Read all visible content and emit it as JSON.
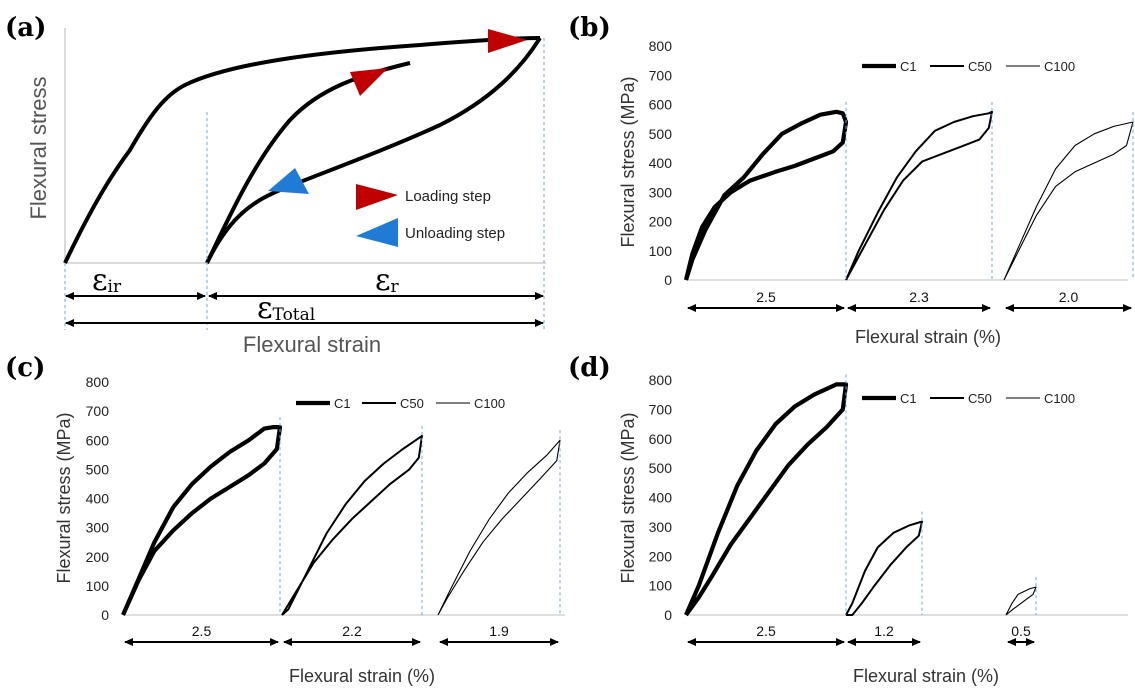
{
  "chart_data": [
    {
      "panel": "(a)",
      "type": "line",
      "xlabel": "Flexural strain",
      "ylabel": "Flexural stress",
      "annotations": {
        "eps_ir": "ε",
        "eps_ir_sub": "ir",
        "eps_r": "ε",
        "eps_r_sub": "r",
        "eps_total": "ε",
        "eps_total_sub": "Total"
      },
      "legend": {
        "loading": "Loading step",
        "unloading": "Unloading step"
      },
      "colors": {
        "loading": "#c00000",
        "unloading": "#1f7bd6"
      }
    },
    {
      "panel": "(b)",
      "type": "line",
      "xlabel": "Flexural strain (%)",
      "ylabel": "Flexural stress (MPa)",
      "ylim": [
        0,
        800
      ],
      "yticks": [
        "0",
        "100",
        "200",
        "300",
        "400",
        "500",
        "600",
        "700",
        "800"
      ],
      "legend": [
        "C1",
        "C50",
        "C100"
      ],
      "spans": [
        "2.5",
        "2.3",
        "2.0"
      ],
      "series": [
        {
          "name": "C1",
          "strain_range": 2.5,
          "loading": [
            [
              0,
              0
            ],
            [
              0.1,
              70
            ],
            [
              0.3,
              170
            ],
            [
              0.6,
              290
            ],
            [
              0.9,
              350
            ],
            [
              1.2,
              430
            ],
            [
              1.5,
              500
            ],
            [
              1.8,
              535
            ],
            [
              2.1,
              565
            ],
            [
              2.35,
              575
            ],
            [
              2.45,
              570
            ]
          ],
          "unloading": [
            [
              2.45,
              570
            ],
            [
              2.5,
              540
            ],
            [
              2.45,
              470
            ],
            [
              2.3,
              440
            ],
            [
              2.0,
              415
            ],
            [
              1.7,
              390
            ],
            [
              1.4,
              370
            ],
            [
              1.0,
              340
            ],
            [
              0.7,
              300
            ],
            [
              0.45,
              250
            ],
            [
              0.25,
              180
            ],
            [
              0.1,
              90
            ],
            [
              0,
              0
            ]
          ]
        },
        {
          "name": "C50",
          "strain_range": 2.3,
          "loading": [
            [
              0,
              0
            ],
            [
              0.2,
              100
            ],
            [
              0.5,
              230
            ],
            [
              0.8,
              350
            ],
            [
              1.1,
              440
            ],
            [
              1.4,
              510
            ],
            [
              1.7,
              540
            ],
            [
              2.0,
              560
            ],
            [
              2.25,
              570
            ],
            [
              2.3,
              575
            ]
          ],
          "unloading": [
            [
              2.3,
              575
            ],
            [
              2.25,
              520
            ],
            [
              2.1,
              480
            ],
            [
              1.8,
              455
            ],
            [
              1.5,
              430
            ],
            [
              1.2,
              405
            ],
            [
              0.9,
              340
            ],
            [
              0.6,
              240
            ],
            [
              0.3,
              120
            ],
            [
              0,
              0
            ]
          ]
        },
        {
          "name": "C100",
          "strain_range": 2.0,
          "loading": [
            [
              0,
              0
            ],
            [
              0.2,
              100
            ],
            [
              0.5,
              250
            ],
            [
              0.8,
              380
            ],
            [
              1.1,
              460
            ],
            [
              1.4,
              500
            ],
            [
              1.7,
              525
            ],
            [
              1.9,
              535
            ],
            [
              2.0,
              540
            ]
          ],
          "unloading": [
            [
              2.0,
              540
            ],
            [
              1.9,
              460
            ],
            [
              1.7,
              430
            ],
            [
              1.4,
              400
            ],
            [
              1.1,
              370
            ],
            [
              0.8,
              320
            ],
            [
              0.5,
              220
            ],
            [
              0.25,
              110
            ],
            [
              0,
              0
            ]
          ]
        }
      ]
    },
    {
      "panel": "(c)",
      "type": "line",
      "xlabel": "Flexural strain (%)",
      "ylabel": "Flexural stress (MPa)",
      "ylim": [
        0,
        800
      ],
      "yticks": [
        "0",
        "100",
        "200",
        "300",
        "400",
        "500",
        "600",
        "700",
        "800"
      ],
      "legend": [
        "C1",
        "C50",
        "C100"
      ],
      "spans": [
        "2.5",
        "2.2",
        "1.9"
      ],
      "series": [
        {
          "name": "C1",
          "strain_range": 2.5,
          "loading": [
            [
              0,
              0
            ],
            [
              0.2,
              100
            ],
            [
              0.5,
              250
            ],
            [
              0.8,
              370
            ],
            [
              1.1,
              450
            ],
            [
              1.4,
              510
            ],
            [
              1.7,
              560
            ],
            [
              2.0,
              600
            ],
            [
              2.25,
              640
            ],
            [
              2.4,
              645
            ],
            [
              2.5,
              645
            ]
          ],
          "unloading": [
            [
              2.5,
              645
            ],
            [
              2.45,
              570
            ],
            [
              2.25,
              520
            ],
            [
              2.0,
              480
            ],
            [
              1.7,
              440
            ],
            [
              1.4,
              400
            ],
            [
              1.1,
              350
            ],
            [
              0.8,
              290
            ],
            [
              0.5,
              220
            ],
            [
              0.25,
              120
            ],
            [
              0,
              0
            ]
          ]
        },
        {
          "name": "C50",
          "strain_range": 2.2,
          "loading": [
            [
              0,
              0
            ],
            [
              0.1,
              20
            ],
            [
              0.4,
              150
            ],
            [
              0.7,
              280
            ],
            [
              1.0,
              380
            ],
            [
              1.3,
              460
            ],
            [
              1.6,
              520
            ],
            [
              1.9,
              570
            ],
            [
              2.1,
              600
            ],
            [
              2.2,
              615
            ]
          ],
          "unloading": [
            [
              2.2,
              615
            ],
            [
              2.15,
              540
            ],
            [
              2.0,
              500
            ],
            [
              1.7,
              450
            ],
            [
              1.4,
              390
            ],
            [
              1.1,
              330
            ],
            [
              0.8,
              260
            ],
            [
              0.5,
              180
            ],
            [
              0.25,
              90
            ],
            [
              0,
              0
            ]
          ]
        },
        {
          "name": "C100",
          "strain_range": 1.9,
          "loading": [
            [
              0,
              0
            ],
            [
              0.2,
              90
            ],
            [
              0.5,
              220
            ],
            [
              0.8,
              330
            ],
            [
              1.1,
              420
            ],
            [
              1.4,
              490
            ],
            [
              1.7,
              550
            ],
            [
              1.9,
              600
            ]
          ],
          "unloading": [
            [
              1.9,
              600
            ],
            [
              1.85,
              530
            ],
            [
              1.6,
              470
            ],
            [
              1.3,
              400
            ],
            [
              1.0,
              330
            ],
            [
              0.7,
              250
            ],
            [
              0.4,
              150
            ],
            [
              0.15,
              60
            ],
            [
              0,
              0
            ]
          ]
        }
      ]
    },
    {
      "panel": "(d)",
      "type": "line",
      "xlabel": "Flexural strain (%)",
      "ylabel": "Flexural stress (MPa)",
      "ylim": [
        0,
        800
      ],
      "yticks": [
        "0",
        "100",
        "200",
        "300",
        "400",
        "500",
        "600",
        "700",
        "800"
      ],
      "legend": [
        "C1",
        "C50",
        "C100"
      ],
      "spans": [
        "2.5",
        "1.2",
        "0.5"
      ],
      "series": [
        {
          "name": "C1",
          "strain_range": 2.5,
          "loading": [
            [
              0,
              0
            ],
            [
              0.2,
              100
            ],
            [
              0.5,
              280
            ],
            [
              0.8,
              440
            ],
            [
              1.1,
              560
            ],
            [
              1.4,
              650
            ],
            [
              1.7,
              710
            ],
            [
              2.0,
              750
            ],
            [
              2.2,
              770
            ],
            [
              2.35,
              785
            ],
            [
              2.5,
              785
            ]
          ],
          "unloading": [
            [
              2.5,
              785
            ],
            [
              2.45,
              700
            ],
            [
              2.2,
              640
            ],
            [
              1.9,
              580
            ],
            [
              1.6,
              510
            ],
            [
              1.3,
              420
            ],
            [
              1.0,
              330
            ],
            [
              0.7,
              240
            ],
            [
              0.4,
              130
            ],
            [
              0.2,
              60
            ],
            [
              0,
              0
            ]
          ]
        },
        {
          "name": "C50",
          "strain_range": 1.2,
          "loading": [
            [
              0,
              0
            ],
            [
              0.1,
              40
            ],
            [
              0.3,
              150
            ],
            [
              0.5,
              230
            ],
            [
              0.75,
              280
            ],
            [
              1.0,
              305
            ],
            [
              1.15,
              315
            ],
            [
              1.2,
              318
            ]
          ],
          "unloading": [
            [
              1.2,
              318
            ],
            [
              1.15,
              270
            ],
            [
              0.95,
              230
            ],
            [
              0.7,
              170
            ],
            [
              0.45,
              100
            ],
            [
              0.25,
              40
            ],
            [
              0.1,
              0
            ],
            [
              0,
              0
            ]
          ]
        },
        {
          "name": "C100",
          "strain_range": 0.5,
          "loading": [
            [
              0,
              0
            ],
            [
              0.1,
              40
            ],
            [
              0.2,
              70
            ],
            [
              0.3,
              80
            ],
            [
              0.4,
              90
            ],
            [
              0.5,
              95
            ]
          ],
          "unloading": [
            [
              0.5,
              95
            ],
            [
              0.45,
              70
            ],
            [
              0.35,
              55
            ],
            [
              0.25,
              40
            ],
            [
              0.12,
              20
            ],
            [
              0,
              0
            ]
          ]
        }
      ]
    }
  ]
}
